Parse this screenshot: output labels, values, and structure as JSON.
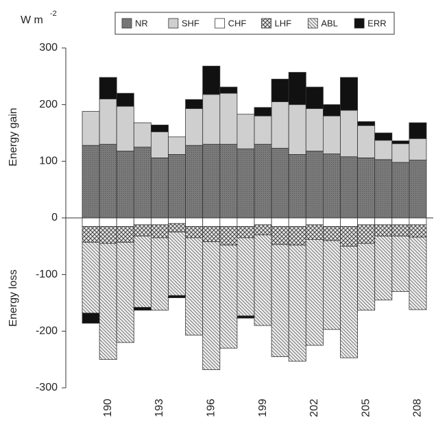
{
  "chart_data": {
    "type": "bar",
    "stacked": true,
    "y_title_gain": "Energy gain",
    "y_title_loss": "Energy loss",
    "unit": "W m",
    "unit_sup": "-2",
    "categories": [
      null,
      "190",
      null,
      null,
      "193",
      null,
      null,
      "196",
      null,
      null,
      "199",
      null,
      null,
      "202",
      null,
      null,
      "205",
      null,
      null,
      "208"
    ],
    "series": [
      {
        "name": "NR",
        "color": "#7a7a7a",
        "hatch": "dots",
        "values": [
          128,
          130,
          118,
          125,
          106,
          112,
          128,
          130,
          130,
          122,
          130,
          123,
          112,
          118,
          113,
          108,
          106,
          103,
          98,
          102
        ]
      },
      {
        "name": "SHF",
        "color": "#cfcfcf",
        "hatch": "none",
        "values": [
          60,
          80,
          79,
          43,
          46,
          31,
          65,
          88,
          90,
          61,
          50,
          82,
          88,
          75,
          67,
          82,
          57,
          34,
          33,
          38
        ]
      },
      {
        "name": "CHF",
        "color": "#ffffff",
        "hatch": "none",
        "values": [
          -15,
          -15,
          -15,
          -12,
          -12,
          -10,
          -15,
          -15,
          -15,
          -15,
          -12,
          -15,
          -15,
          -12,
          -15,
          -15,
          -12,
          -12,
          -12,
          -12
        ]
      },
      {
        "name": "LHF",
        "color": "#bbbbbb",
        "hatch": "cross",
        "values": [
          -28,
          -30,
          -28,
          -20,
          -23,
          -15,
          -20,
          -27,
          -33,
          -20,
          -18,
          -32,
          -33,
          -26,
          -25,
          -35,
          -33,
          -20,
          -20,
          -22
        ]
      },
      {
        "name": "ABL",
        "color": "#dddddd",
        "hatch": "diagonal",
        "values": [
          -125,
          -205,
          -177,
          -126,
          -128,
          -112,
          -172,
          -226,
          -182,
          -138,
          -160,
          -198,
          -205,
          -187,
          -157,
          -197,
          -118,
          -113,
          -98,
          -128
        ]
      },
      {
        "name": "ERR",
        "color": "#111111",
        "hatch": "none",
        "values": [
          -18,
          38,
          23,
          -5,
          12,
          -4,
          16,
          50,
          11,
          -4,
          15,
          40,
          57,
          38,
          20,
          58,
          7,
          13,
          5,
          28
        ]
      }
    ],
    "ylim": [
      -300,
      300
    ],
    "yticks": [
      300,
      200,
      100,
      0,
      -100,
      -200,
      -300
    ]
  }
}
